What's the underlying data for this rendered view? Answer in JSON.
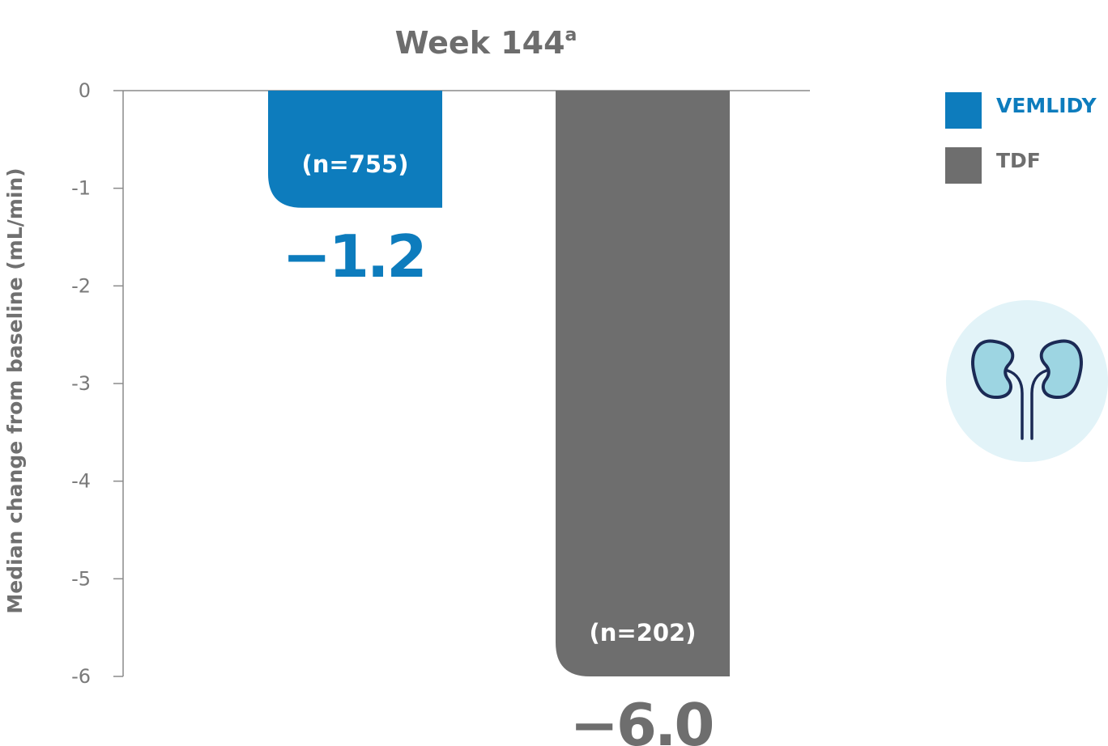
{
  "chart_data": {
    "type": "bar",
    "title": "Week 144",
    "title_superscript": "a",
    "ylabel": "Median change from baseline (mL/min)",
    "ylim": [
      -6,
      0
    ],
    "yticks": [
      "0",
      "-1",
      "-2",
      "-3",
      "-4",
      "-5",
      "-6"
    ],
    "legend_position": "right",
    "series": [
      {
        "name": "VEMLIDY",
        "value": -1.2,
        "value_label": "−1.2",
        "n_label": "(n=755)",
        "color": "#0d7cbd"
      },
      {
        "name": "TDF",
        "value": -6.0,
        "value_label": "−6.0",
        "n_label": "(n=202)",
        "color": "#6e6e6e"
      }
    ]
  },
  "icon": {
    "name": "kidneys-icon",
    "bg_color": "#e2f3f8",
    "fill_color": "#9dd5e2",
    "stroke_color": "#1b2a55"
  }
}
